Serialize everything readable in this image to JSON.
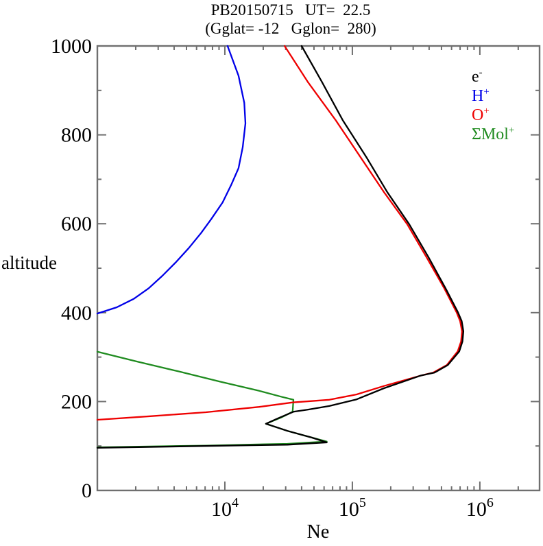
{
  "title": {
    "line1": "PB20150715   UT=  22.5",
    "line2": "(Gglat= -12   Gglon=  280)"
  },
  "axes": {
    "x_tick_labels": [
      {
        "base": "10",
        "exp": "4",
        "value": 10000
      },
      {
        "base": "10",
        "exp": "5",
        "value": 100000
      },
      {
        "base": "10",
        "exp": "6",
        "value": 1000000
      }
    ],
    "y_tick_labels": [
      {
        "text": "0",
        "value": 0
      },
      {
        "text": "200",
        "value": 200
      },
      {
        "text": "400",
        "value": 400
      },
      {
        "text": "600",
        "value": 600
      },
      {
        "text": "800",
        "value": 800
      },
      {
        "text": "1000",
        "value": 1000
      }
    ],
    "frame_color": "#6f6f6f"
  },
  "legend": [
    {
      "base": "e",
      "sup": "-",
      "color": "#000000"
    },
    {
      "base": "H",
      "sup": "+",
      "color": "#0000e8"
    },
    {
      "base": "O",
      "sup": "+",
      "color": "#ee0000"
    },
    {
      "base": "ΣMol",
      "sup": "+",
      "color": "#1f8b1f"
    }
  ],
  "chart_data": {
    "type": "line",
    "title": "PB20150715 UT= 22.5 (Gglat= -12 Gglon= 280)",
    "xlabel": "Ne",
    "ylabel": "altitude",
    "x_scale": "log",
    "xlim": [
      1000,
      2940000
    ],
    "ylim": [
      0,
      1000
    ],
    "y_major_step": 200,
    "y_minor_step": 100,
    "grid": false,
    "legend_position": "upper-right-inside",
    "series": [
      {
        "name": "SMol+",
        "color": "#1f8b1f",
        "points_alt_ne": [
          [
            312,
            1000
          ],
          [
            290,
            2050
          ],
          [
            268,
            4300
          ],
          [
            245,
            9100
          ],
          [
            224,
            18600
          ],
          [
            211,
            27600
          ],
          [
            204,
            34500
          ],
          [
            177,
            34000
          ],
          [
            164,
            27600
          ],
          [
            150,
            21000
          ],
          [
            134,
            31000
          ],
          [
            119,
            48000
          ],
          [
            110,
            63000
          ],
          [
            105,
            31000
          ],
          [
            101,
            7100
          ],
          [
            97,
            1000
          ]
        ]
      },
      {
        "name": "H+",
        "color": "#0000e8",
        "points_alt_ne": [
          [
            1000,
            10500
          ],
          [
            933,
            12800
          ],
          [
            872,
            14200
          ],
          [
            826,
            14500
          ],
          [
            772,
            13800
          ],
          [
            725,
            12800
          ],
          [
            687,
            11200
          ],
          [
            648,
            9600
          ],
          [
            610,
            7800
          ],
          [
            579,
            6500
          ],
          [
            545,
            5200
          ],
          [
            514,
            4150
          ],
          [
            483,
            3240
          ],
          [
            455,
            2530
          ],
          [
            431,
            1930
          ],
          [
            412,
            1420
          ],
          [
            398,
            1000
          ]
        ]
      },
      {
        "name": "O+",
        "color": "#ee0000",
        "points_alt_ne": [
          [
            1000,
            29400
          ],
          [
            918,
            45000
          ],
          [
            833,
            74000
          ],
          [
            748,
            117000
          ],
          [
            671,
            177000
          ],
          [
            599,
            269000
          ],
          [
            525,
            381000
          ],
          [
            455,
            525000
          ],
          [
            401,
            656000
          ],
          [
            381,
            700000
          ],
          [
            358,
            725000
          ],
          [
            335,
            712000
          ],
          [
            313,
            670000
          ],
          [
            282,
            550000
          ],
          [
            265,
            430000
          ],
          [
            258,
            340000
          ],
          [
            235,
            177000
          ],
          [
            216,
            108000
          ],
          [
            204,
            66000
          ],
          [
            198,
            34000
          ],
          [
            188,
            18600
          ],
          [
            176,
            7100
          ],
          [
            167,
            2600
          ],
          [
            159,
            1000
          ]
        ]
      },
      {
        "name": "e-",
        "color": "#000000",
        "points_alt_ne": [
          [
            1000,
            40000
          ],
          [
            918,
            58000
          ],
          [
            833,
            84000
          ],
          [
            748,
            130000
          ],
          [
            671,
            188000
          ],
          [
            599,
            279000
          ],
          [
            525,
            395000
          ],
          [
            455,
            538000
          ],
          [
            401,
            673000
          ],
          [
            381,
            720000
          ],
          [
            358,
            743000
          ],
          [
            335,
            730000
          ],
          [
            313,
            690000
          ],
          [
            282,
            560000
          ],
          [
            265,
            440000
          ],
          [
            258,
            340000
          ],
          [
            230,
            177000
          ],
          [
            205,
            108000
          ],
          [
            190,
            66000
          ],
          [
            182,
            45000
          ],
          [
            177,
            34500
          ],
          [
            162,
            26000
          ],
          [
            150,
            21000
          ],
          [
            134,
            31000
          ],
          [
            119,
            48000
          ],
          [
            108,
            63000
          ],
          [
            103,
            31000
          ],
          [
            100,
            7100
          ],
          [
            96,
            1000
          ]
        ]
      }
    ]
  }
}
